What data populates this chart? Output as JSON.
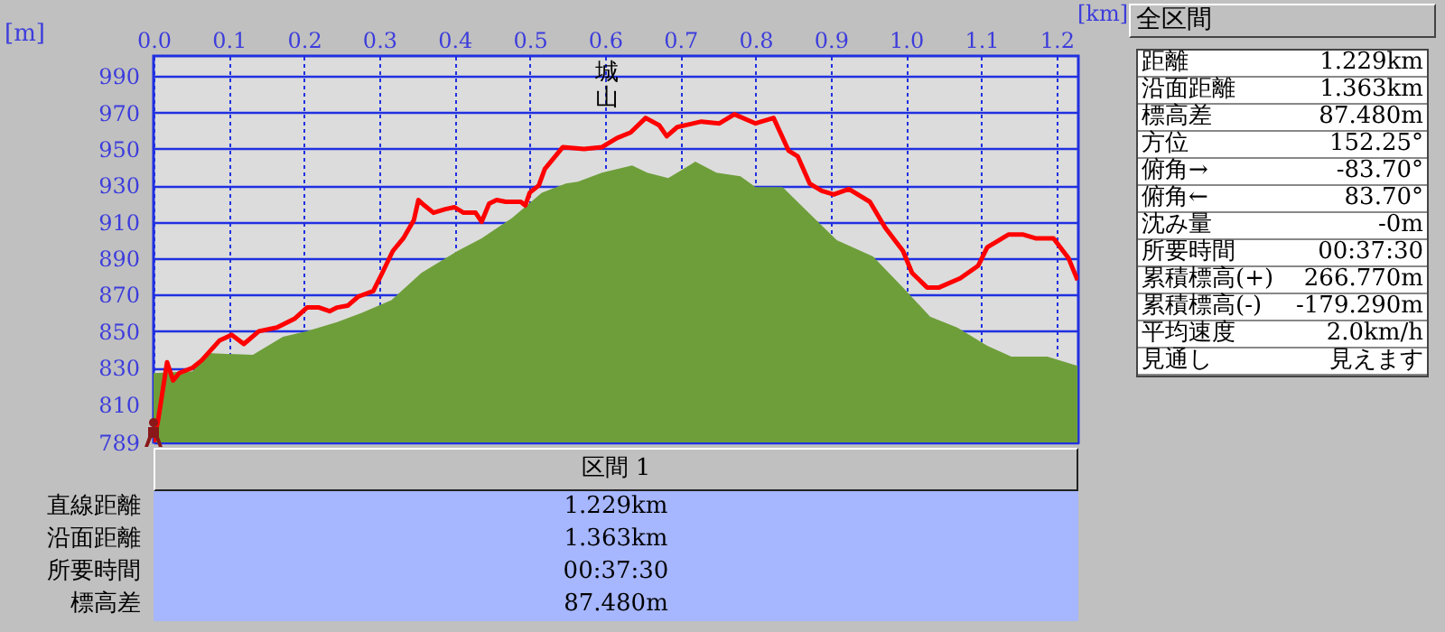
{
  "chart_data": [
    {
      "type": "line",
      "xlabel": "[km]",
      "ylabel": "[m]",
      "xlim": [
        0,
        1.229
      ],
      "ylim": [
        789,
        1001
      ],
      "xticks": [
        {
          "value": 0,
          "label": "0.0"
        },
        0.1,
        0.2,
        0.3,
        0.4,
        0.5,
        0.6,
        0.7,
        0.8,
        0.9,
        {
          "value": 1,
          "label": "1.0"
        },
        1.1,
        1.2
      ],
      "yticks": [
        789,
        810,
        830,
        850,
        870,
        890,
        910,
        930,
        950,
        970,
        990
      ],
      "grid": true,
      "marker": "none",
      "annotations": [
        "城山"
      ],
      "series": [
        {
          "type": "area",
          "color": "#6e9e3a",
          "x": [
            0,
            0.052,
            0.072,
            0.132,
            0.172,
            0.204,
            0.244,
            0.276,
            0.316,
            0.356,
            0.404,
            0.436,
            0.476,
            0.516,
            0.548,
            0.564,
            0.596,
            0.636,
            0.656,
            0.684,
            0.72,
            0.748,
            0.78,
            0.8,
            0.836,
            0.868,
            0.908,
            0.956,
            0.996,
            1.032,
            1.068,
            1.108,
            1.14,
            1.188,
            1.228
          ],
          "values": [
            827,
            828,
            838,
            837,
            847,
            850,
            855,
            860,
            867,
            882,
            894,
            901,
            912,
            926,
            931,
            932,
            937,
            941,
            937,
            934,
            943,
            937,
            935,
            929,
            929,
            916,
            900,
            891,
            874,
            858,
            852,
            842,
            836,
            836,
            831
          ]
        },
        {
          "type": "line",
          "color": "#ff0000",
          "x": [
            0,
            0.006,
            0.018,
            0.026,
            0.034,
            0.052,
            0.064,
            0.088,
            0.104,
            0.12,
            0.14,
            0.164,
            0.188,
            0.204,
            0.22,
            0.234,
            0.244,
            0.258,
            0.272,
            0.292,
            0.304,
            0.318,
            0.332,
            0.346,
            0.352,
            0.36,
            0.372,
            0.388,
            0.4,
            0.412,
            0.428,
            0.436,
            0.446,
            0.456,
            0.468,
            0.488,
            0.494,
            0.5,
            0.512,
            0.52,
            0.544,
            0.572,
            0.596,
            0.616,
            0.634,
            0.654,
            0.672,
            0.682,
            0.696,
            0.728,
            0.752,
            0.772,
            0.8,
            0.824,
            0.844,
            0.856,
            0.872,
            0.888,
            0.904,
            0.924,
            0.952,
            0.972,
            0.996,
            1.008,
            1.028,
            1.044,
            1.072,
            1.096,
            1.108,
            1.136,
            1.156,
            1.172,
            1.196,
            1.216,
            1.228
          ],
          "values": [
            789,
            801,
            833,
            823,
            827,
            830,
            834,
            845,
            848,
            843,
            850,
            852,
            857,
            863,
            863,
            861,
            863,
            864,
            869,
            872,
            882,
            894,
            901,
            911,
            922,
            919,
            915,
            917,
            918,
            915,
            915,
            910,
            920,
            922,
            921,
            921,
            919,
            926,
            930,
            939,
            951,
            950,
            951,
            956,
            959,
            967,
            963,
            957,
            962,
            965,
            964,
            969,
            964,
            967,
            949,
            946,
            931,
            927,
            925,
            928,
            921,
            907,
            894,
            882,
            874,
            874,
            879,
            886,
            896,
            903,
            903,
            901,
            901,
            890,
            878
          ]
        }
      ]
    },
    {
      "type": "other",
      "title": "全区間",
      "annotations": [
        "距離",
        "1.229km",
        "沿面距離",
        "1.363km",
        "標高差",
        "87.480m",
        "方位",
        "152.25°",
        "俯角→",
        "-83.70°",
        "俯角←",
        "83.70°",
        "沈み量",
        "-0m",
        "所要時間",
        "00:37:30",
        "累積標高(+)",
        "266.770m",
        "累積標高(-)",
        "-179.290m",
        "平均速度",
        "2.0km/h",
        "見通し",
        "見えます"
      ]
    },
    {
      "type": "other",
      "title": "区間 1",
      "annotations": [
        "直線距離",
        "1.229km",
        "沿面距離",
        "1.363km",
        "所要時間",
        "00:37:30",
        "標高差",
        "87.480m"
      ]
    }
  ]
}
